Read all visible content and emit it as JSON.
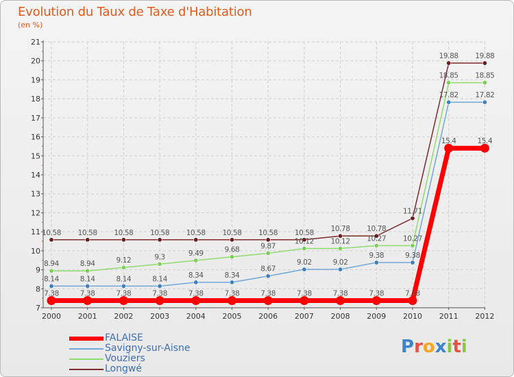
{
  "title": "Evolution du Taux de Taxe d'Habitation",
  "unit": "(en %)",
  "logo": {
    "letters": [
      "P",
      "r",
      "o",
      "x",
      "i",
      "t",
      "i"
    ],
    "colors": [
      "#3a86c8",
      "#e8523f",
      "#f5a623",
      "#3a86c8",
      "#8cc63f",
      "#e8523f",
      "#8cc63f"
    ]
  },
  "chart_data": {
    "type": "line",
    "title": "Evolution du Taux de Taxe d'Habitation",
    "ylabel": "(en %)",
    "xlabel": "",
    "ylim": [
      7,
      21
    ],
    "yticks": [
      7,
      8,
      9,
      10,
      11,
      12,
      13,
      14,
      15,
      16,
      17,
      18,
      19,
      20,
      21
    ],
    "categories": [
      "2000",
      "2001",
      "2002",
      "2003",
      "2004",
      "2005",
      "2006",
      "2007",
      "2008",
      "2009",
      "2010",
      "2011",
      "2012"
    ],
    "series": [
      {
        "name": "Longwé",
        "color": "#7b2a2a",
        "marker": "#6a1e1e",
        "values": [
          10.58,
          10.58,
          10.58,
          10.58,
          10.58,
          10.58,
          10.58,
          10.58,
          10.78,
          10.78,
          11.71,
          19.88,
          19.88
        ],
        "labels": [
          "10.58",
          "10.58",
          "10.58",
          "10.58",
          "10.58",
          "10.58",
          "10.58",
          "10.58",
          "10.78",
          "10.78",
          "11.71",
          "19.88",
          "19.88"
        ]
      },
      {
        "name": "Vouziers",
        "color": "#8fdc6e",
        "marker": "#7ccf55",
        "values": [
          8.94,
          8.94,
          9.12,
          9.3,
          9.49,
          9.68,
          9.87,
          10.12,
          10.12,
          10.27,
          10.27,
          18.85,
          18.85
        ],
        "labels": [
          "8.94",
          "8.94",
          "9.12",
          "9.3",
          "9.49",
          "9.68",
          "9.87",
          "10.12",
          "10.12",
          "10.27",
          "10.27",
          "18.85",
          "18.85"
        ]
      },
      {
        "name": "Savigny-sur-Aisne",
        "color": "#6ea8d8",
        "marker": "#3f7fbf",
        "values": [
          8.14,
          8.14,
          8.14,
          8.14,
          8.34,
          8.34,
          8.67,
          9.02,
          9.02,
          9.38,
          9.38,
          17.82,
          17.82
        ],
        "labels": [
          "8.14",
          "8.14",
          "8.14",
          "8.14",
          "8.34",
          "8.34",
          "8.67",
          "9.02",
          "9.02",
          "9.38",
          "9.38",
          "17.82",
          "17.82"
        ]
      },
      {
        "name": "FALAISE",
        "color": "#ff0000",
        "marker": "#ff0000",
        "values": [
          7.38,
          7.38,
          7.38,
          7.38,
          7.38,
          7.38,
          7.38,
          7.38,
          7.38,
          7.38,
          7.38,
          15.4,
          15.4
        ],
        "labels": [
          "7.38",
          "7.38",
          "7.38",
          "7.38",
          "7.38",
          "7.38",
          "7.38",
          "7.38",
          "7.38",
          "7.38",
          "7.38",
          "15.4",
          "15.4"
        ]
      }
    ],
    "legend": [
      "FALAISE",
      "Savigny-sur-Aisne",
      "Vouziers",
      "Longwé"
    ]
  }
}
